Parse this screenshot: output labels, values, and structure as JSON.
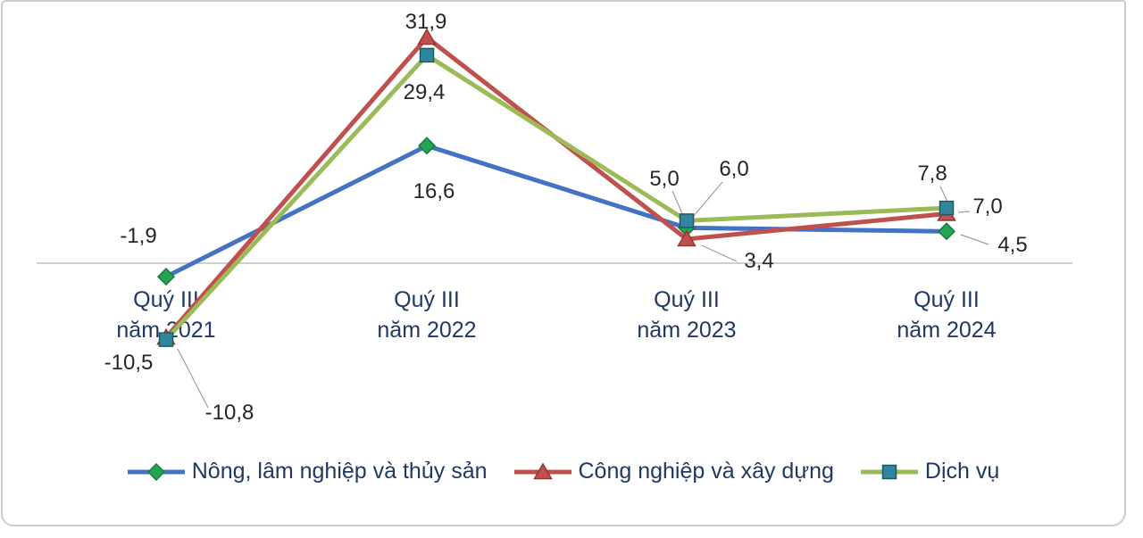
{
  "chart_data": {
    "type": "line",
    "title": "",
    "xlabel": "",
    "ylabel": "",
    "categories": [
      "Quý III năm 2021",
      "Quý III năm 2022",
      "Quý III năm 2023",
      "Quý III năm 2024"
    ],
    "series": [
      {
        "name": "Nông, lâm nghiệp và thủy sản",
        "values": [
          -1.9,
          16.6,
          5.0,
          4.5
        ],
        "labels": [
          "-1,9",
          "16,6",
          "5,0",
          "4,5"
        ],
        "color": "#4472C4",
        "marker": "diamond",
        "marker_color": "#22A453",
        "marker_stroke": "#1C7A40"
      },
      {
        "name": "Công nghiệp và xây dựng",
        "values": [
          -10.5,
          31.9,
          3.4,
          7.0
        ],
        "labels": [
          "-10,5",
          "31,9",
          "3,4",
          "7,0"
        ],
        "color": "#C0504D",
        "marker": "triangle",
        "marker_color": "#C0504D",
        "marker_stroke": "#943634"
      },
      {
        "name": "Dịch vụ",
        "values": [
          -10.8,
          29.4,
          6.0,
          7.8
        ],
        "labels": [
          "-10,8",
          "29,4",
          "6,0",
          "7,8"
        ],
        "color": "#9BBB59",
        "marker": "square",
        "marker_color": "#31859C",
        "marker_stroke": "#215968"
      }
    ],
    "ylim": [
      -13,
      34
    ],
    "baseline": 0,
    "grid": false,
    "legend_position": "bottom",
    "decimal_separator": ","
  },
  "colors": {
    "axis_line": "#BFBFBF",
    "leader_line": "#9E9E9E",
    "data_label": "#262626",
    "tick_label": "#1F3864",
    "legend_text": "#1F3864",
    "card_border": "#C9CED3",
    "background": "#FFFFFF"
  }
}
